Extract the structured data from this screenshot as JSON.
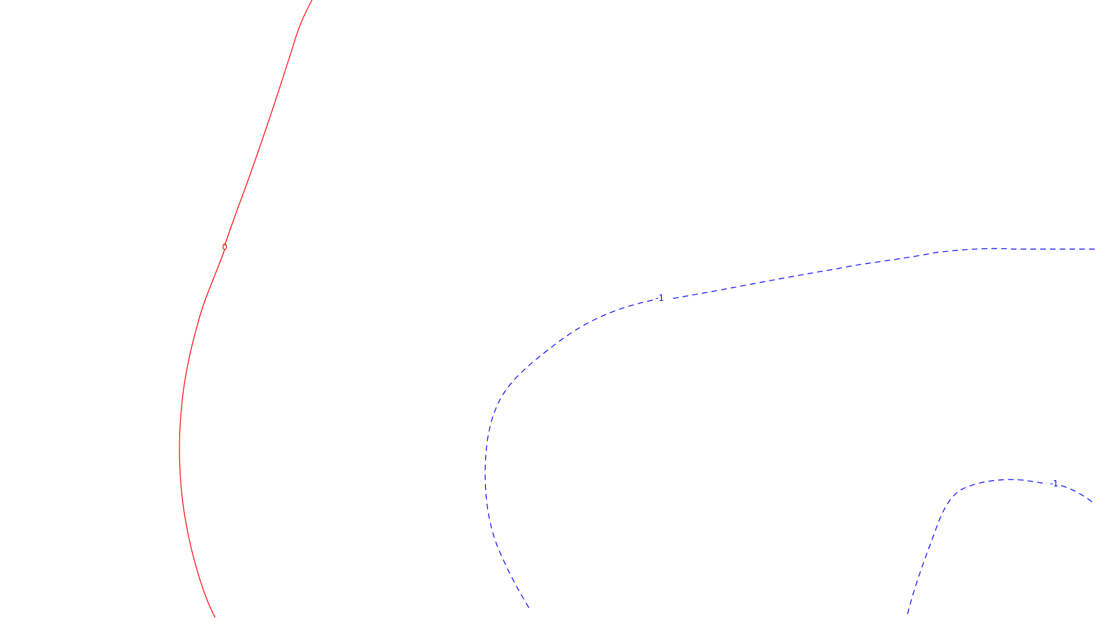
{
  "chart_data": {
    "type": "contour",
    "title": "",
    "xlabel": "",
    "ylabel": "",
    "grid": false,
    "legend": false,
    "levels": [
      {
        "level": 0,
        "label": "0",
        "color": "#ff0000",
        "linestyle": "solid"
      },
      {
        "level": -1,
        "label": "-1",
        "color": "#0000ff",
        "linestyle": "dashed"
      },
      {
        "level": -1,
        "label": "-1",
        "color": "#0000ff",
        "linestyle": "dashed"
      }
    ]
  }
}
